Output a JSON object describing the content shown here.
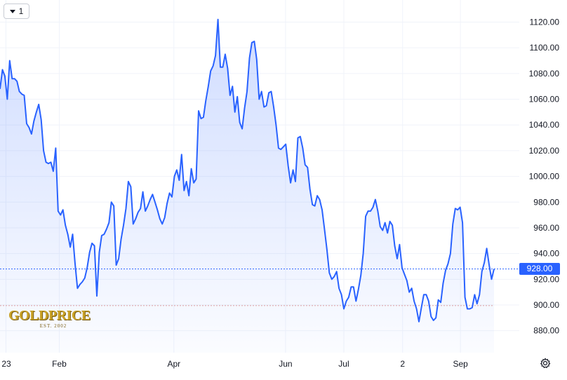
{
  "toolbar": {
    "interval_label": "1"
  },
  "watermark": {
    "logo_text": "GOLDPRICE",
    "logo_subtext": "EST. 2002"
  },
  "colors": {
    "line": "#2962ff",
    "price_tag": "#2962ff",
    "baseline": "#e0a0a0"
  },
  "chart_data": {
    "type": "area",
    "x_tick_labels": [
      "23",
      "Feb",
      "Apr",
      "Jun",
      "Jul",
      "2",
      "Sep"
    ],
    "y_tick_labels": [
      "880.00",
      "900.00",
      "920.00",
      "940.00",
      "960.00",
      "980.00",
      "1000.00",
      "1020.00",
      "1040.00",
      "1060.00",
      "1080.00",
      "1100.00",
      "1120.00"
    ],
    "ylim": [
      870,
      1126
    ],
    "last_price": 928.0,
    "last_price_label": "928.00",
    "baseline_value": 899.5,
    "grid": true,
    "series": [
      {
        "values": [
          1068,
          1083,
          1078,
          1060,
          1090,
          1076,
          1076,
          1074,
          1066,
          1064,
          1063,
          1041,
          1038,
          1033,
          1043,
          1050,
          1056,
          1044,
          1020,
          1011,
          1010,
          1011,
          1004,
          1022,
          973,
          970,
          974,
          962,
          955,
          945,
          955,
          932,
          913,
          916,
          918,
          921,
          929,
          941,
          948,
          946,
          907,
          941,
          954,
          955,
          959,
          964,
          980,
          977,
          931,
          936,
          951,
          962,
          975,
          996,
          992,
          963,
          967,
          972,
          975,
          988,
          973,
          977,
          982,
          986,
          980,
          974,
          967,
          963,
          968,
          979,
          987,
          984,
          1000,
          1005,
          997,
          1017,
          989,
          996,
          985,
          1006,
          995,
          998,
          1051,
          1045,
          1046,
          1059,
          1070,
          1082,
          1086,
          1094,
          1122,
          1085,
          1085,
          1095,
          1084,
          1063,
          1070,
          1050,
          1062,
          1042,
          1037,
          1053,
          1066,
          1092,
          1104,
          1105,
          1091,
          1060,
          1066,
          1054,
          1055,
          1065,
          1066,
          1054,
          1040,
          1022,
          1021,
          1023,
          1025,
          1008,
          995,
          1005,
          996,
          1030,
          1031,
          1022,
          1009,
          1007,
          990,
          978,
          977,
          985,
          982,
          974,
          959,
          943,
          925,
          920,
          922,
          926,
          913,
          908,
          897,
          903,
          906,
          914,
          914,
          903,
          912,
          923,
          940,
          969,
          973,
          973,
          976,
          982,
          973,
          961,
          958,
          964,
          956,
          965,
          962,
          946,
          936,
          947,
          929,
          924,
          919,
          910,
          913,
          903,
          897,
          887,
          898,
          908,
          908,
          903,
          891,
          888,
          890,
          904,
          902,
          917,
          927,
          932,
          940,
          963,
          975,
          974,
          976,
          964,
          906,
          897,
          897,
          898,
          908,
          901,
          908,
          926,
          933,
          944,
          931,
          920,
          928
        ]
      }
    ]
  }
}
